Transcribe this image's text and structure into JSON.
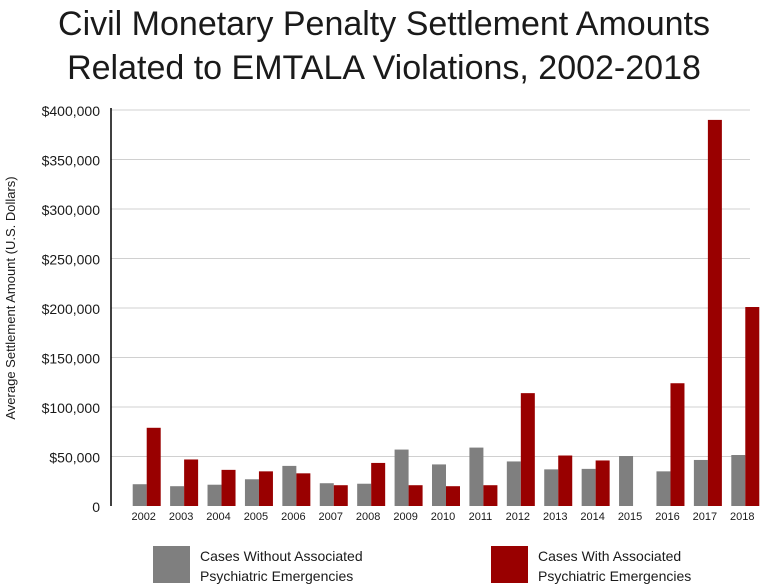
{
  "chart_data": {
    "type": "bar",
    "title_lines": [
      "Civil Monetary Penalty Settlement Amounts",
      "Related to EMTALA Violations, 2002-2018"
    ],
    "xlabel": "",
    "ylabel": "Average Settlement Amount (U.S. Dollars)",
    "ylim": [
      0,
      400000
    ],
    "yticks": [
      0,
      50000,
      100000,
      150000,
      200000,
      250000,
      300000,
      350000,
      400000
    ],
    "ytick_labels": [
      "0",
      "$50,000",
      "$100,000",
      "$150,000",
      "$200,000",
      "$250,000",
      "$300,000",
      "$350,000",
      "$400,000"
    ],
    "grid": true,
    "legend_position": "bottom",
    "categories": [
      "2002",
      "2003",
      "2004",
      "2005",
      "2006",
      "2007",
      "2008",
      "2009",
      "2010",
      "2011",
      "2012",
      "2013",
      "2014",
      "2015",
      "2016",
      "2017",
      "2018"
    ],
    "series": [
      {
        "name_lines": [
          "Cases Without Associated",
          "Psychiatric Emergencies"
        ],
        "color": "#7f7f7f",
        "values": [
          22000,
          20000,
          21500,
          27000,
          40500,
          23000,
          22500,
          57000,
          42000,
          59000,
          45000,
          37000,
          37500,
          50500,
          35000,
          46500,
          51500
        ]
      },
      {
        "name_lines": [
          "Cases With Associated",
          "Psychiatric Emergencies"
        ],
        "color": "#990000",
        "values": [
          79000,
          47000,
          36500,
          35000,
          33000,
          21000,
          43500,
          21000,
          20000,
          21000,
          114000,
          51000,
          46000,
          null,
          124000,
          390000,
          201000
        ]
      }
    ]
  }
}
